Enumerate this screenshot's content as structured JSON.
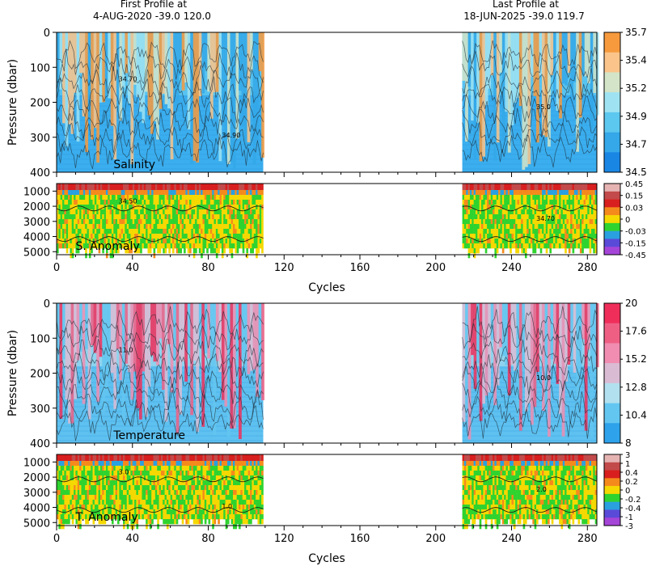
{
  "header": {
    "first_label": "First Profile at",
    "first_value": "4-AUG-2020    -39.0  120.0",
    "last_label": "Last Profile at",
    "last_value": "18-JUN-2025    -39.0  119.7"
  },
  "chart_data": [
    {
      "type": "heatmap",
      "panel_label": "Salinity",
      "ylabel": "Pressure (dbar)",
      "xlabel": "",
      "xlim": [
        0,
        285
      ],
      "ylim": [
        400,
        0
      ],
      "yticks": [
        "0",
        "100",
        "200",
        "300",
        "400"
      ],
      "xticks": [],
      "data_segments": [
        [
          0,
          109
        ],
        [
          214,
          285
        ]
      ],
      "colorbar": {
        "labels": [
          "35.7",
          "35.46",
          "35.22",
          "34.98",
          "34.74",
          "34.5"
        ],
        "colors": [
          "#f79a3e",
          "#fbc48a",
          "#d4e4c8",
          "#9fe3f2",
          "#5cc8ef",
          "#34a8e8",
          "#1a86e4"
        ]
      },
      "contour_labels": [
        "34.70",
        "35.0",
        "34.90"
      ]
    },
    {
      "type": "heatmap",
      "panel_label": "S. Anomaly",
      "ylabel": "",
      "xlabel": "Cycles",
      "xlim": [
        0,
        285
      ],
      "ylim": [
        5200,
        500
      ],
      "yticks": [
        "1000",
        "2000",
        "3000",
        "4000",
        "5000"
      ],
      "xticks": [
        "0",
        "40",
        "80",
        "120",
        "160",
        "200",
        "240",
        "280"
      ],
      "data_segments": [
        [
          0,
          109
        ],
        [
          214,
          285
        ]
      ],
      "colorbar": {
        "labels": [
          "0.45",
          "0.15",
          "0.03",
          "0",
          "-0.03",
          "-0.15",
          "-0.45"
        ],
        "colors": [
          "#e6b3b3",
          "#c24a4a",
          "#d81e1e",
          "#f58a1c",
          "#f5d800",
          "#2fd32f",
          "#2aa0e0",
          "#5a4ad8",
          "#a545d8"
        ]
      },
      "contour_labels": [
        "34.50",
        "34.70"
      ]
    },
    {
      "type": "heatmap",
      "panel_label": "Temperature",
      "ylabel": "Pressure (dbar)",
      "xlabel": "",
      "xlim": [
        0,
        285
      ],
      "ylim": [
        400,
        0
      ],
      "yticks": [
        "0",
        "100",
        "200",
        "300",
        "400"
      ],
      "xticks": [],
      "data_segments": [
        [
          0,
          109
        ],
        [
          214,
          285
        ]
      ],
      "colorbar": {
        "labels": [
          "20",
          "17.6",
          "15.2",
          "12.8",
          "10.4",
          "8"
        ],
        "colors": [
          "#ef2f5a",
          "#ef5f84",
          "#f08db0",
          "#d9bcd4",
          "#b2e0ee",
          "#63c6f0",
          "#2ea2ea"
        ]
      },
      "contour_labels": [
        "11.0",
        "10.0"
      ]
    },
    {
      "type": "heatmap",
      "panel_label": "T. Anomaly",
      "ylabel": "",
      "xlabel": "Cycles",
      "xlim": [
        0,
        285
      ],
      "ylim": [
        5200,
        500
      ],
      "yticks": [
        "1000",
        "2000",
        "3000",
        "4000",
        "5000"
      ],
      "xticks": [
        "0",
        "40",
        "80",
        "120",
        "160",
        "200",
        "240",
        "280"
      ],
      "data_segments": [
        [
          0,
          109
        ],
        [
          214,
          285
        ]
      ],
      "colorbar": {
        "labels": [
          "3",
          "1",
          "0.4",
          "0.2",
          "0",
          "-0.2",
          "-0.4",
          "-1",
          "-3"
        ],
        "colors": [
          "#e6b3b3",
          "#c24a4a",
          "#d81e1e",
          "#f58a1c",
          "#f5d800",
          "#2fd32f",
          "#2aa0e0",
          "#5a4ad8",
          "#a545d8"
        ]
      },
      "contour_labels": [
        "3.0",
        "2.0",
        "1.0"
      ]
    }
  ]
}
